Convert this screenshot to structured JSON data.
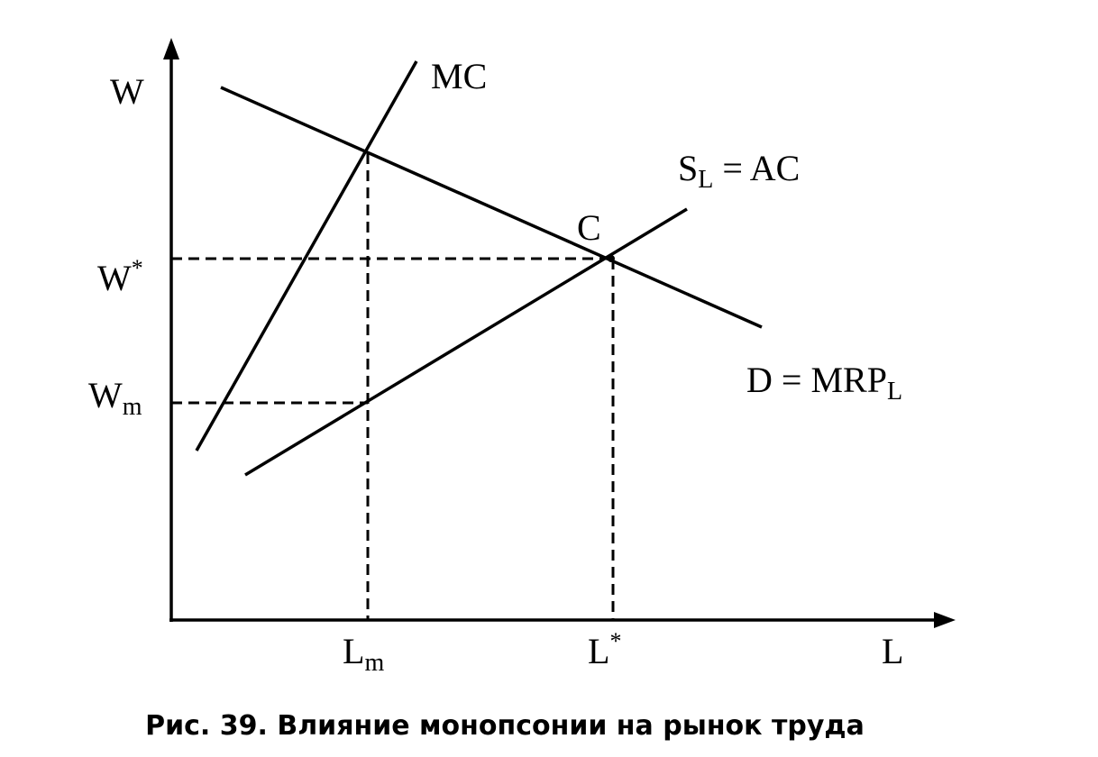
{
  "diagram": {
    "y_axis_label": "W",
    "x_axis_label": "L",
    "w_star": {
      "main": "W",
      "sup": "*"
    },
    "w_m": {
      "main": "W",
      "sub": "m"
    },
    "l_m": {
      "main": "L",
      "sub": "m"
    },
    "l_star": {
      "main": "L",
      "sup": "*"
    },
    "mc_label": "MC",
    "supply_label": {
      "main": "S",
      "sub": "L",
      "rest": " = AC"
    },
    "point_label": "C",
    "demand_label": {
      "main": "D = MRP",
      "sub": "L"
    },
    "caption": "Рис. 39. Влияние монопсонии на рынок труда"
  }
}
